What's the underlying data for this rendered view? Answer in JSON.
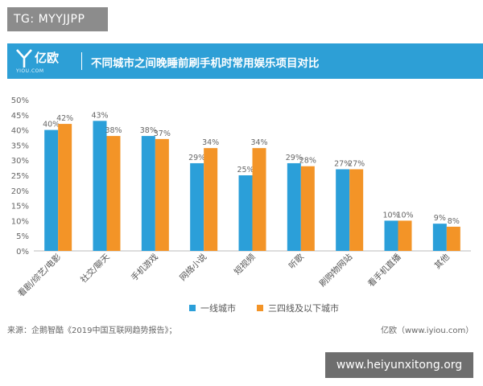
{
  "badge": {
    "text": "TG: MYYJJPP"
  },
  "banner": {
    "logo_text": "亿欧",
    "logo_sub": "YIOU.COM",
    "title": "不同城市之间晚睡前刷手机时常用娱乐项目对比"
  },
  "footer": {
    "source": "来源：企鹅智酷《2019中国互联网趋势报告》；",
    "brand": "亿欧（www.iyiou.com）"
  },
  "watermark": {
    "text": "www.heiyunxitong.org"
  },
  "colors": {
    "banner": "#2d9fd6",
    "series1": "#2b9fd9",
    "series2": "#f39427"
  },
  "chart_data": {
    "type": "bar",
    "title": "不同城市之间晚睡前刷手机时常用娱乐项目对比",
    "categories": [
      "看剧/综艺/电影",
      "社交/聊天",
      "手机游戏",
      "网络小说",
      "短视频",
      "听歌",
      "刷购物网站",
      "看手机直播",
      "其他"
    ],
    "series": [
      {
        "name": "一线城市",
        "values": [
          40,
          43,
          38,
          29,
          25,
          29,
          27,
          10,
          9
        ],
        "labels": [
          "40%",
          "43%",
          "38%",
          "29%",
          "25%",
          "29%",
          "27%",
          "10%",
          "9%"
        ]
      },
      {
        "name": "三四线及以下城市",
        "values": [
          42,
          38,
          37,
          34,
          34,
          28,
          27,
          10,
          8
        ],
        "labels": [
          "42%",
          "38%",
          "37%",
          "34%",
          "34%",
          "28%",
          "27%",
          "10%",
          "8%"
        ]
      }
    ],
    "ylim": [
      0,
      50
    ],
    "yticks": [
      "0%",
      "5%",
      "10%",
      "15%",
      "20%",
      "25%",
      "30%",
      "35%",
      "40%",
      "45%",
      "50%"
    ],
    "xlabel": "",
    "ylabel": "",
    "grid": false,
    "legend": "bottom-center"
  }
}
